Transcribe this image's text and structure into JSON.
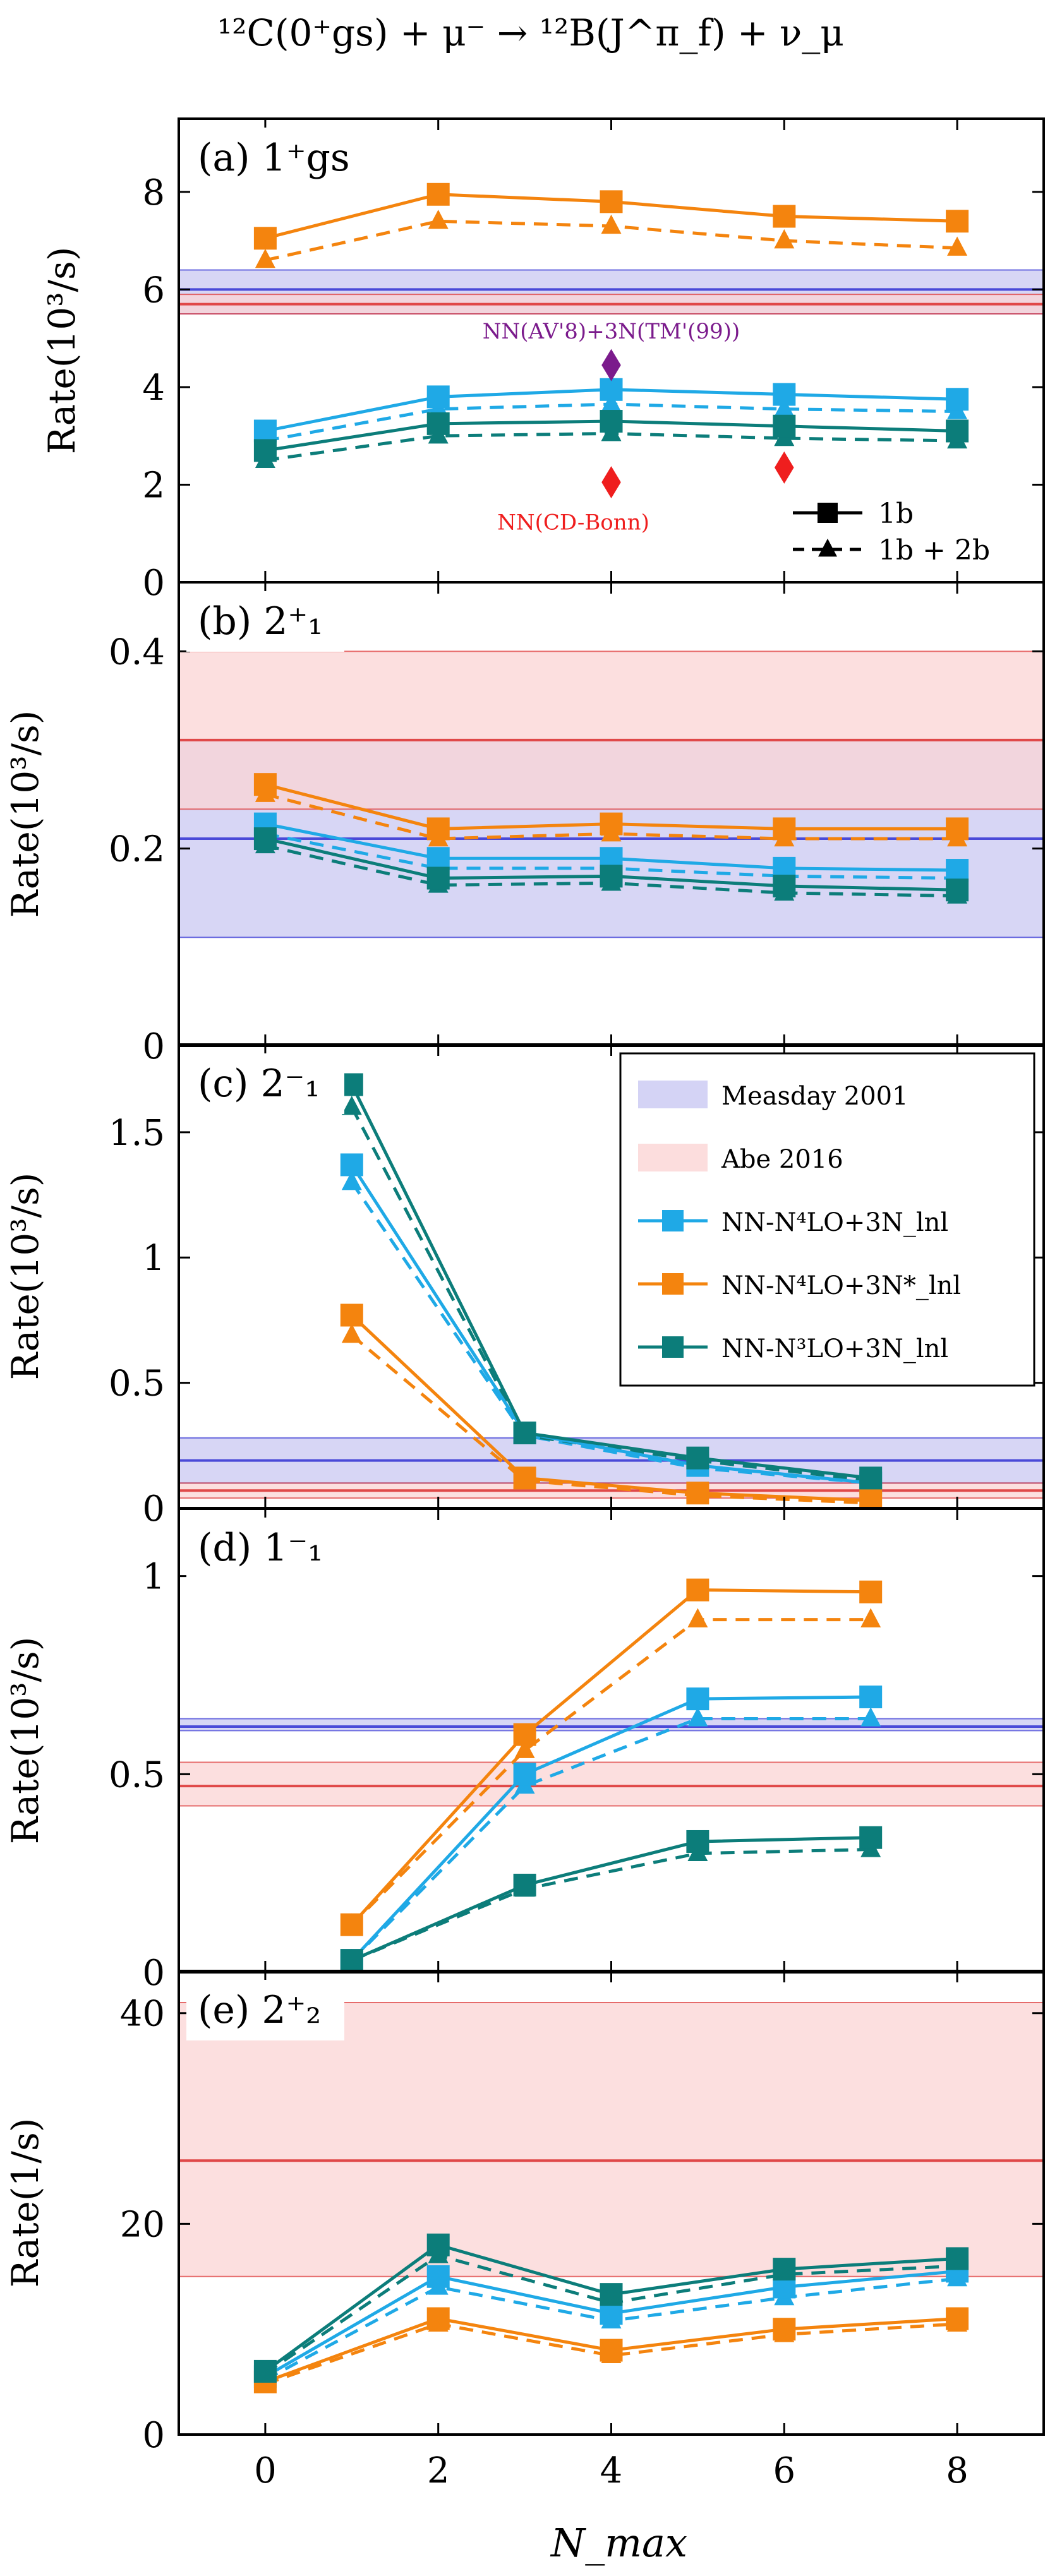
{
  "figure_title": "¹²C(0⁺gs) + μ⁻ → ¹²B(J^π_f) + ν_μ",
  "xlabel": "N_max",
  "x_ticks": [
    "0",
    "2",
    "4",
    "6",
    "8"
  ],
  "colors": {
    "light_blue": "#1fa9e6",
    "orange": "#f4840e",
    "teal": "#0c7d7a",
    "measday_band": "#c9c8f2",
    "measday_line": "#4a4ad8",
    "abe_band": "#fbd4d4",
    "abe_line": "#e04848",
    "purple": "#7b1b8c",
    "red": "#ef1e1e"
  },
  "legend_main": {
    "items": [
      {
        "label": "Measday 2001",
        "kind": "band",
        "color": "measday"
      },
      {
        "label": "Abe 2016",
        "kind": "band",
        "color": "abe"
      },
      {
        "label": "NN-N⁴LO+3N_lnl",
        "kind": "series",
        "color": "light_blue"
      },
      {
        "label": "NN-N⁴LO+3N*_lnl",
        "kind": "series",
        "color": "orange"
      },
      {
        "label": "NN-N³LO+3N_lnl",
        "kind": "series",
        "color": "teal"
      }
    ]
  },
  "legend_style": {
    "solid_label": "1b",
    "dashed_label": "1b + 2b"
  },
  "chart_data": [
    {
      "type": "line",
      "panel_label": "(a) 1⁺gs",
      "ylabel": "Rate(10³/s)",
      "ylim": [
        0,
        9.5
      ],
      "yticks": [
        0,
        2,
        4,
        6,
        8
      ],
      "measday": {
        "center": 6.0,
        "low": 5.5,
        "high": 6.4
      },
      "abe": {
        "center": 5.7,
        "low": 5.5,
        "high": 5.9
      },
      "series": [
        {
          "name": "NN-N⁴LO+3N_lnl",
          "color": "light_blue",
          "style": "1b",
          "x": [
            0,
            2,
            4,
            6,
            8
          ],
          "y": [
            3.1,
            3.8,
            3.95,
            3.85,
            3.75
          ]
        },
        {
          "name": "NN-N⁴LO+3N_lnl",
          "color": "light_blue",
          "style": "1b+2b",
          "x": [
            0,
            2,
            4,
            6,
            8
          ],
          "y": [
            2.9,
            3.55,
            3.65,
            3.55,
            3.5
          ]
        },
        {
          "name": "NN-N⁴LO+3N*_lnl",
          "color": "orange",
          "style": "1b",
          "x": [
            0,
            2,
            4,
            6,
            8
          ],
          "y": [
            7.05,
            7.95,
            7.8,
            7.5,
            7.4
          ]
        },
        {
          "name": "NN-N⁴LO+3N*_lnl",
          "color": "orange",
          "style": "1b+2b",
          "x": [
            0,
            2,
            4,
            6,
            8
          ],
          "y": [
            6.6,
            7.4,
            7.3,
            7.0,
            6.85
          ]
        },
        {
          "name": "NN-N³LO+3N_lnl",
          "color": "teal",
          "style": "1b",
          "x": [
            0,
            2,
            4,
            6,
            8
          ],
          "y": [
            2.7,
            3.25,
            3.3,
            3.2,
            3.1
          ]
        },
        {
          "name": "NN-N³LO+3N_lnl",
          "color": "teal",
          "style": "1b+2b",
          "x": [
            0,
            2,
            4,
            6,
            8
          ],
          "y": [
            2.5,
            3.0,
            3.05,
            2.95,
            2.9
          ]
        }
      ],
      "markers": [
        {
          "label": "NN(AV'8)+3N(TM'(99))",
          "x": 4,
          "y": 4.45,
          "color": "purple",
          "label_pos": "above"
        },
        {
          "label": "NN(CD-Bonn)",
          "x": 4,
          "y": 2.05,
          "color": "red",
          "label_pos": "below"
        },
        {
          "label": "",
          "x": 6,
          "y": 2.35,
          "color": "red",
          "label_pos": "none"
        }
      ]
    },
    {
      "type": "line",
      "panel_label": "(b) 2⁺₁",
      "ylabel": "Rate(10³/s)",
      "ylim": [
        0,
        0.47
      ],
      "yticks": [
        0,
        0.2,
        0.4
      ],
      "measday": {
        "center": 0.21,
        "low": 0.11,
        "high": 0.31
      },
      "abe": {
        "center": 0.31,
        "low": 0.24,
        "high": 0.4
      },
      "series": [
        {
          "name": "NN-N⁴LO+3N_lnl",
          "color": "light_blue",
          "style": "1b",
          "x": [
            0,
            2,
            4,
            6,
            8
          ],
          "y": [
            0.225,
            0.19,
            0.19,
            0.18,
            0.178
          ]
        },
        {
          "name": "NN-N⁴LO+3N_lnl",
          "color": "light_blue",
          "style": "1b+2b",
          "x": [
            0,
            2,
            4,
            6,
            8
          ],
          "y": [
            0.215,
            0.18,
            0.18,
            0.172,
            0.17
          ]
        },
        {
          "name": "NN-N⁴LO+3N*_lnl",
          "color": "orange",
          "style": "1b",
          "x": [
            0,
            2,
            4,
            6,
            8
          ],
          "y": [
            0.265,
            0.22,
            0.225,
            0.22,
            0.22
          ]
        },
        {
          "name": "NN-N⁴LO+3N*_lnl",
          "color": "orange",
          "style": "1b+2b",
          "x": [
            0,
            2,
            4,
            6,
            8
          ],
          "y": [
            0.255,
            0.21,
            0.215,
            0.21,
            0.21
          ]
        },
        {
          "name": "NN-N³LO+3N_lnl",
          "color": "teal",
          "style": "1b",
          "x": [
            0,
            2,
            4,
            6,
            8
          ],
          "y": [
            0.21,
            0.17,
            0.172,
            0.162,
            0.158
          ]
        },
        {
          "name": "NN-N³LO+3N_lnl",
          "color": "teal",
          "style": "1b+2b",
          "x": [
            0,
            2,
            4,
            6,
            8
          ],
          "y": [
            0.203,
            0.163,
            0.165,
            0.155,
            0.152
          ]
        }
      ],
      "markers": []
    },
    {
      "type": "line",
      "panel_label": "(c) 2⁻₁",
      "ylabel": "Rate(10³/s)",
      "ylim": [
        0,
        1.85
      ],
      "yticks": [
        0,
        0.5,
        1,
        1.5
      ],
      "measday": {
        "center": 0.19,
        "low": 0.1,
        "high": 0.28
      },
      "abe": {
        "center": 0.07,
        "low": 0.04,
        "high": 0.1
      },
      "series": [
        {
          "name": "NN-N⁴LO+3N_lnl",
          "color": "light_blue",
          "style": "1b",
          "x": [
            1,
            3,
            5,
            7
          ],
          "y": [
            1.37,
            0.3,
            0.17,
            0.1
          ]
        },
        {
          "name": "NN-N⁴LO+3N_lnl",
          "color": "light_blue",
          "style": "1b+2b",
          "x": [
            1,
            3,
            5,
            7
          ],
          "y": [
            1.3,
            0.29,
            0.16,
            0.1
          ]
        },
        {
          "name": "NN-N⁴LO+3N*_lnl",
          "color": "orange",
          "style": "1b",
          "x": [
            1,
            3,
            5,
            7
          ],
          "y": [
            0.77,
            0.12,
            0.06,
            0.03
          ]
        },
        {
          "name": "NN-N⁴LO+3N*_lnl",
          "color": "orange",
          "style": "1b+2b",
          "x": [
            1,
            3,
            5,
            7
          ],
          "y": [
            0.69,
            0.11,
            0.05,
            0.02
          ]
        },
        {
          "name": "NN-N³LO+3N_lnl",
          "color": "teal",
          "style": "1b",
          "x": [
            1,
            3,
            5,
            7
          ],
          "y": [
            1.69,
            0.3,
            0.2,
            0.12
          ]
        },
        {
          "name": "NN-N³LO+3N_lnl",
          "color": "teal",
          "style": "1b+2b",
          "x": [
            1,
            3,
            5,
            7
          ],
          "y": [
            1.6,
            0.29,
            0.19,
            0.11
          ]
        }
      ],
      "markers": []
    },
    {
      "type": "line",
      "panel_label": "(d) 1⁻₁",
      "ylabel": "Rate(10³/s)",
      "ylim": [
        0,
        1.17
      ],
      "yticks": [
        0,
        0.5,
        1
      ],
      "measday": {
        "center": 0.62,
        "low": 0.61,
        "high": 0.64
      },
      "abe": {
        "center": 0.47,
        "low": 0.42,
        "high": 0.53
      },
      "series": [
        {
          "name": "NN-N⁴LO+3N_lnl",
          "color": "light_blue",
          "style": "1b",
          "x": [
            1,
            3,
            5,
            7
          ],
          "y": [
            0.03,
            0.5,
            0.69,
            0.695
          ]
        },
        {
          "name": "NN-N⁴LO+3N_lnl",
          "color": "light_blue",
          "style": "1b+2b",
          "x": [
            1,
            3,
            5,
            7
          ],
          "y": [
            0.03,
            0.47,
            0.64,
            0.64
          ]
        },
        {
          "name": "NN-N⁴LO+3N*_lnl",
          "color": "orange",
          "style": "1b",
          "x": [
            1,
            3,
            5,
            7
          ],
          "y": [
            0.12,
            0.6,
            0.965,
            0.96
          ]
        },
        {
          "name": "NN-N⁴LO+3N*_lnl",
          "color": "orange",
          "style": "1b+2b",
          "x": [
            1,
            3,
            5,
            7
          ],
          "y": [
            0.12,
            0.56,
            0.89,
            0.89
          ]
        },
        {
          "name": "NN-N³LO+3N_lnl",
          "color": "teal",
          "style": "1b",
          "x": [
            1,
            3,
            5,
            7
          ],
          "y": [
            0.03,
            0.22,
            0.33,
            0.34
          ]
        },
        {
          "name": "NN-N³LO+3N_lnl",
          "color": "teal",
          "style": "1b+2b",
          "x": [
            1,
            3,
            5,
            7
          ],
          "y": [
            0.03,
            0.21,
            0.3,
            0.31
          ]
        }
      ],
      "markers": []
    },
    {
      "type": "line",
      "panel_label": "(e) 2⁺₂",
      "ylabel": "Rate(1/s)",
      "ylim": [
        0,
        44
      ],
      "yticks": [
        0,
        20,
        40
      ],
      "measday": null,
      "abe": {
        "center": 26,
        "low": 15,
        "high": 41
      },
      "series": [
        {
          "name": "NN-N⁴LO+3N_lnl",
          "color": "light_blue",
          "style": "1b",
          "x": [
            0,
            2,
            4,
            6,
            8
          ],
          "y": [
            5.5,
            15,
            11.5,
            14,
            15.5
          ]
        },
        {
          "name": "NN-N⁴LO+3N_lnl",
          "color": "light_blue",
          "style": "1b+2b",
          "x": [
            0,
            2,
            4,
            6,
            8
          ],
          "y": [
            5.2,
            14,
            10.8,
            13,
            14.8
          ]
        },
        {
          "name": "NN-N⁴LO+3N*_lnl",
          "color": "orange",
          "style": "1b",
          "x": [
            0,
            2,
            4,
            6,
            8
          ],
          "y": [
            5,
            11,
            8,
            10,
            11
          ]
        },
        {
          "name": "NN-N⁴LO+3N*_lnl",
          "color": "orange",
          "style": "1b+2b",
          "x": [
            0,
            2,
            4,
            6,
            8
          ],
          "y": [
            4.8,
            10.5,
            7.5,
            9.5,
            10.5
          ]
        },
        {
          "name": "NN-N³LO+3N_lnl",
          "color": "teal",
          "style": "1b",
          "x": [
            0,
            2,
            4,
            6,
            8
          ],
          "y": [
            6,
            18,
            13.3,
            15.7,
            16.7
          ]
        },
        {
          "name": "NN-N³LO+3N_lnl",
          "color": "teal",
          "style": "1b+2b",
          "x": [
            0,
            2,
            4,
            6,
            8
          ],
          "y": [
            5.8,
            17,
            12.5,
            15.2,
            16
          ]
        }
      ],
      "markers": []
    }
  ]
}
